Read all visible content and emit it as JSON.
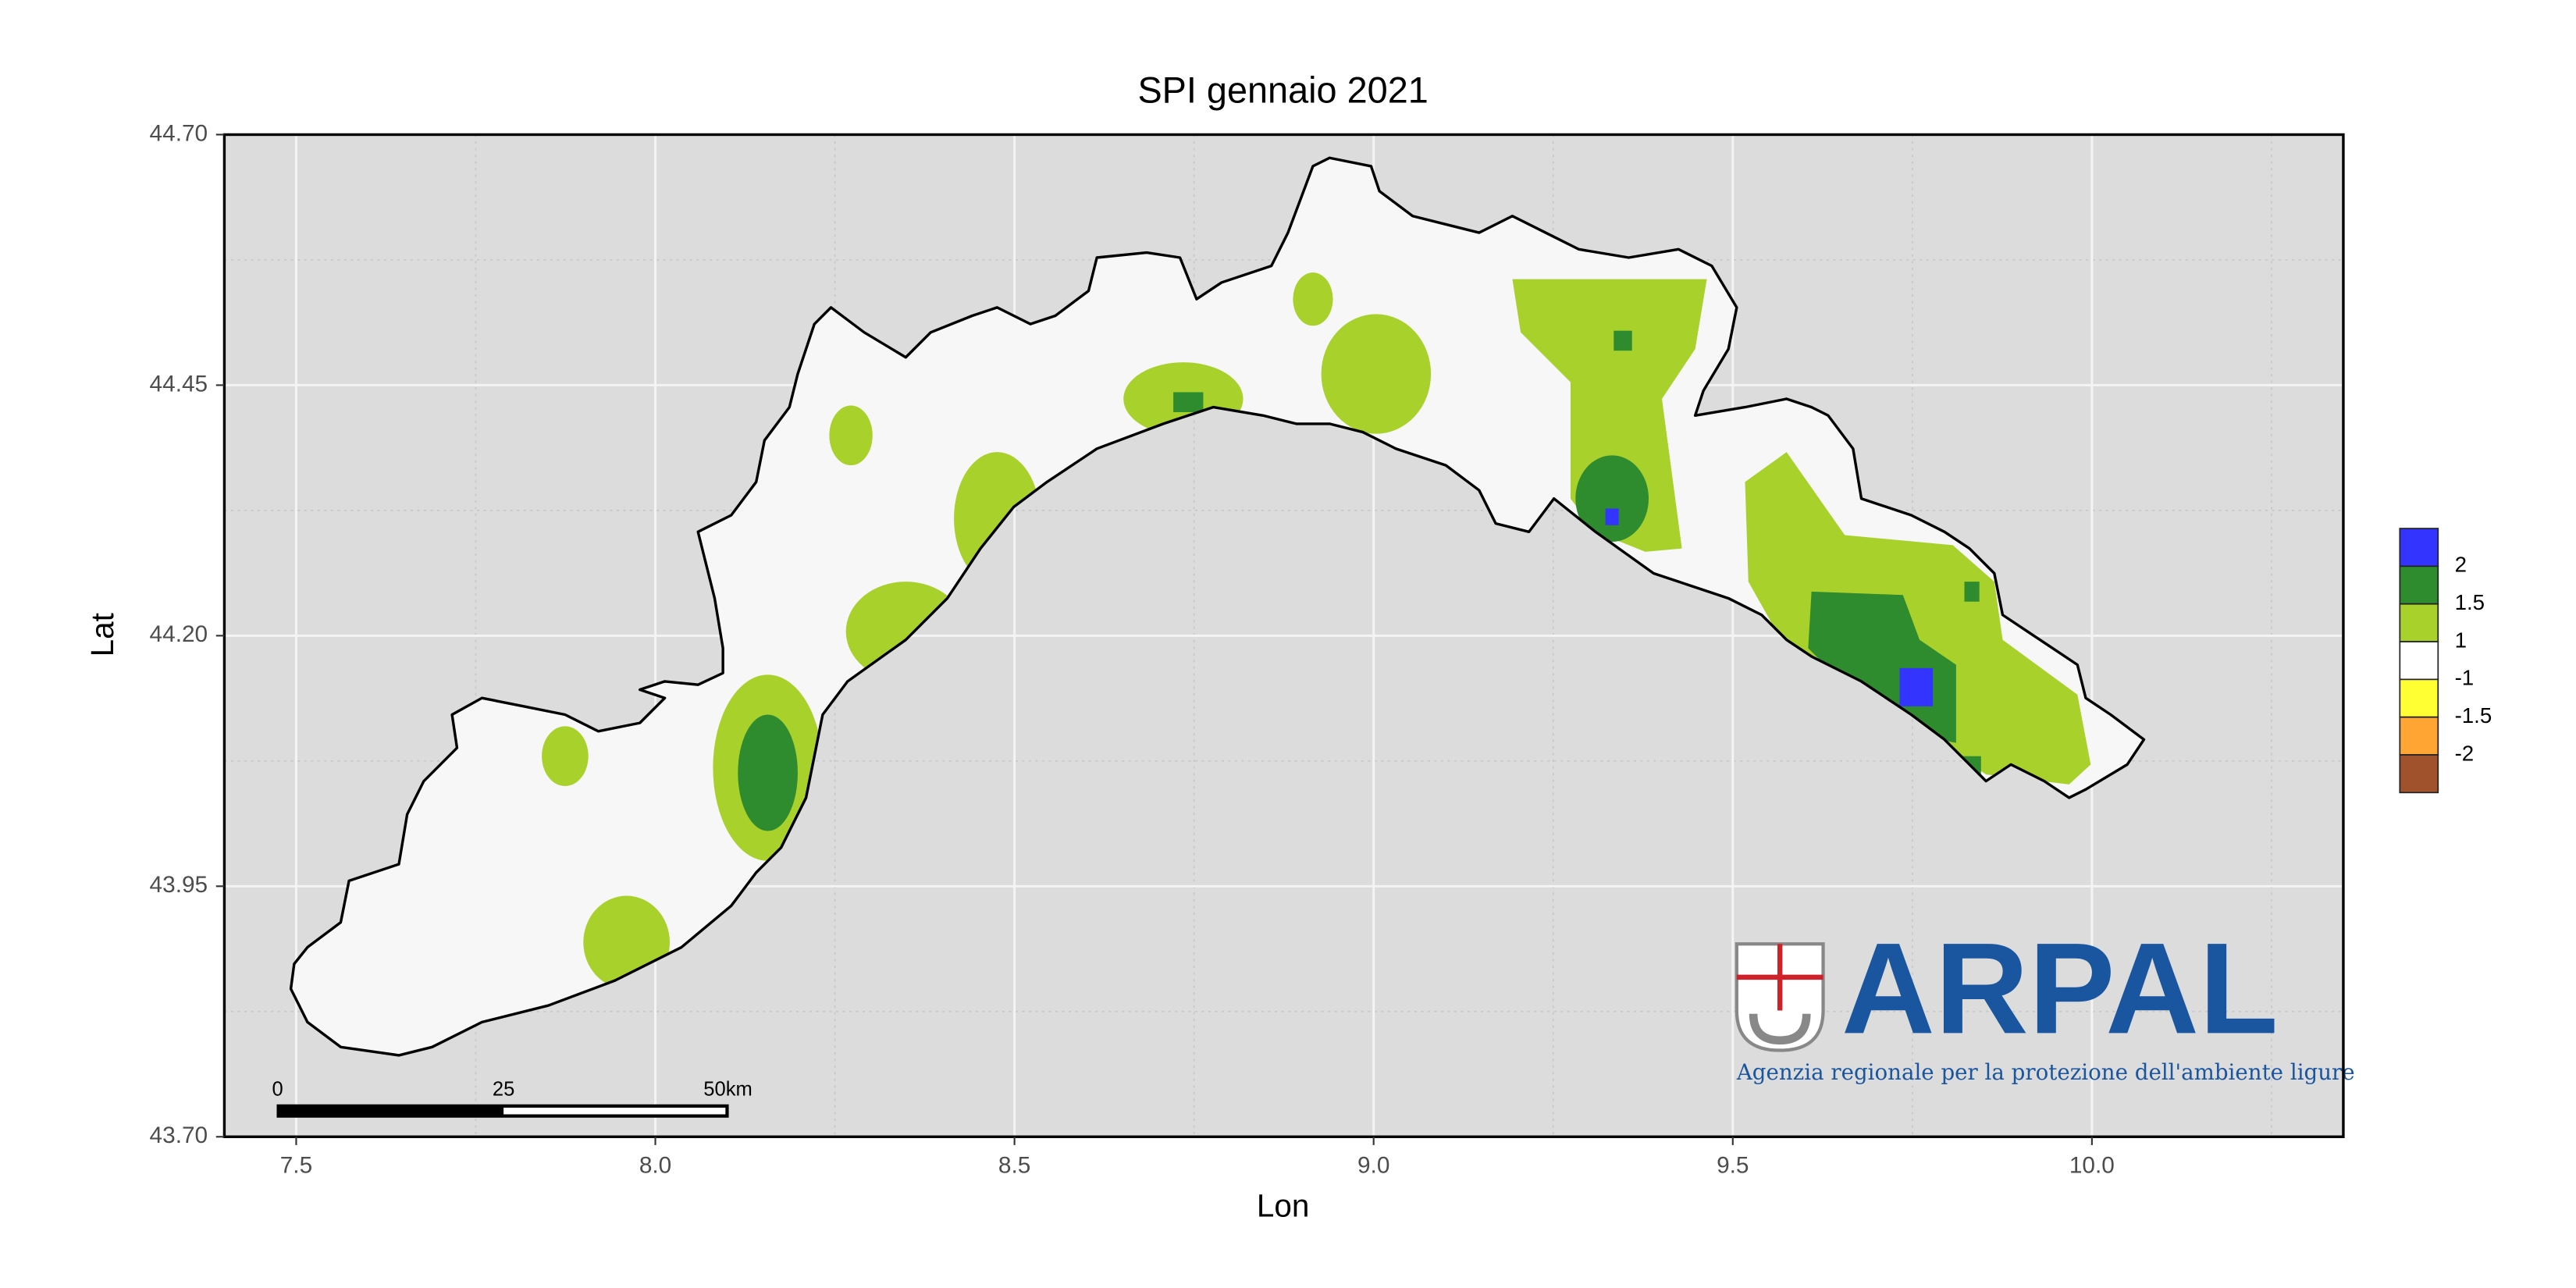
{
  "chart_data": {
    "type": "map",
    "title": "SPI gennaio 2021",
    "x_label": "Lon",
    "y_label": "Lat",
    "xlim": [
      7.4,
      10.35
    ],
    "ylim": [
      43.7,
      44.7
    ],
    "xticks": [
      7.5,
      {
        "value": 8,
        "label": "8.0"
      },
      8.5,
      {
        "value": 9,
        "label": "9.0"
      },
      9.5,
      {
        "value": 10,
        "label": "10.0"
      }
    ],
    "yticks": [
      {
        "value": 43.7,
        "label": "43.70"
      },
      43.95,
      {
        "value": 44.2,
        "label": "44.20"
      },
      44.45,
      {
        "value": 44.7,
        "label": "44.70"
      }
    ],
    "grid": true,
    "legend": {
      "labels": [
        2,
        1.5,
        1,
        -1,
        -1.5,
        -2
      ],
      "colors": [
        "#3434ff",
        "#2e8b2e",
        "#a8d12b",
        "#ffffff",
        "#ffff33",
        "#ffa533",
        "#a0522d"
      ]
    },
    "scale_bar": {
      "labels": [
        "0",
        "25",
        "50km"
      ]
    },
    "logo": {
      "name": "ARPAL",
      "tagline": "Agenzia regionale per la protezione dell'ambiente ligure"
    }
  }
}
